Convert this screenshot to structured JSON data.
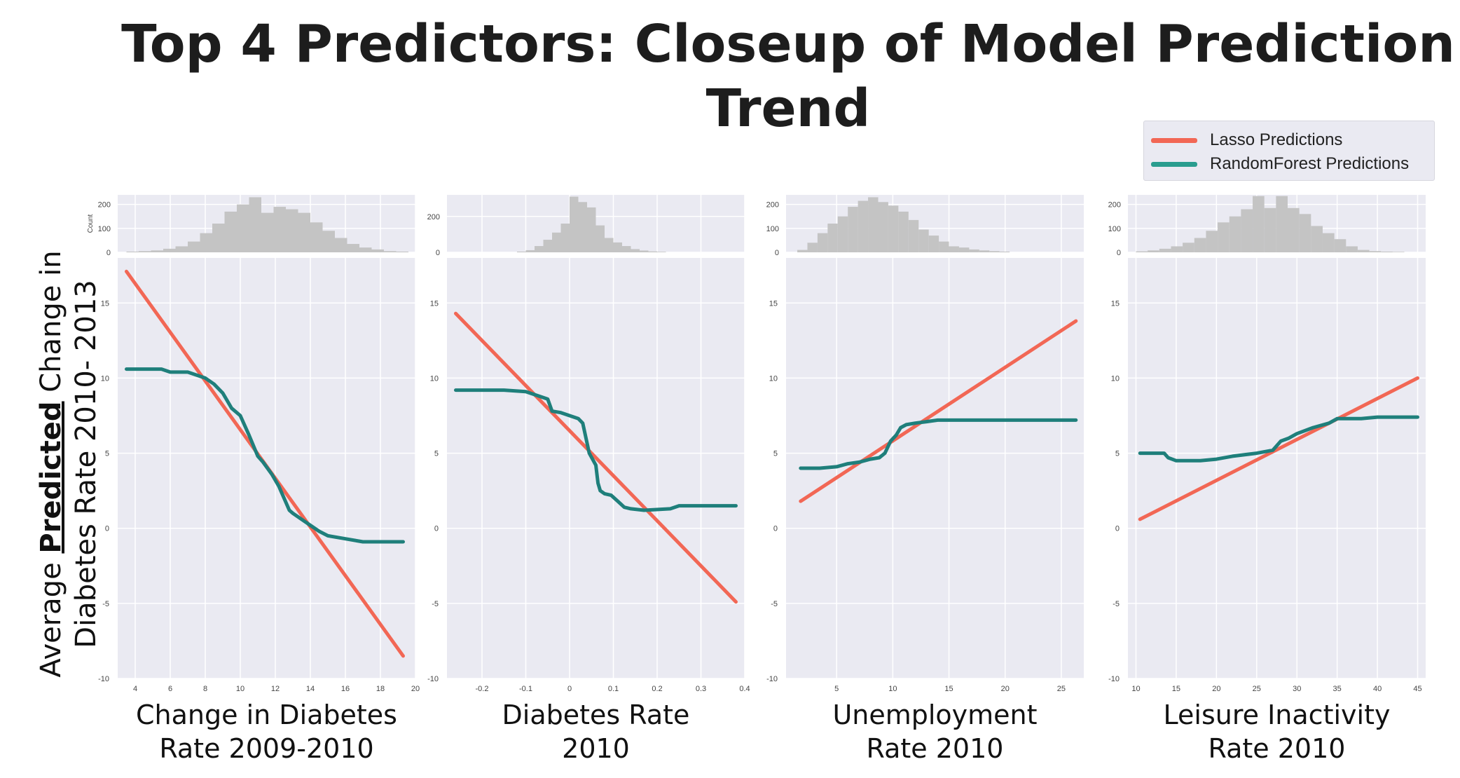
{
  "title_line1": "Top 4 Predictors: Closeup of Model Prediction",
  "title_line2": "Trend",
  "y_label_prefix": "Average ",
  "y_label_bold": "Predicted",
  "y_label_suffix": " Change in",
  "y_label_line2": "Diabetes Rate 2010- 2013",
  "legend": [
    {
      "label": "Lasso Predictions",
      "color": "#f26755"
    },
    {
      "label": "RandomForest Predictions",
      "color": "#2a9d8f"
    }
  ],
  "colors": {
    "lasso": "#f26755",
    "rf": "#1f7f7b",
    "hist": "#c4c4c4",
    "panel_bg": "#eaeaf2",
    "grid": "#ffffff"
  },
  "chart_data": [
    {
      "type": "line",
      "xlabel_line1": "Change in Diabetes",
      "xlabel_line2": "Rate 2009-2010",
      "xlim": [
        3,
        20
      ],
      "ylim": [
        -10,
        18
      ],
      "x_ticks": [
        4,
        6,
        8,
        10,
        12,
        14,
        16,
        18,
        20
      ],
      "y_ticks": [
        -10,
        -5,
        0,
        5,
        10,
        15
      ],
      "hist_ylabel": "Count",
      "hist_ylim": [
        0,
        240
      ],
      "hist_ticks": [
        0,
        100,
        200
      ],
      "hist": {
        "start": 3.5,
        "width": 0.7,
        "counts": [
          3,
          5,
          8,
          15,
          25,
          45,
          80,
          120,
          170,
          200,
          230,
          165,
          190,
          180,
          165,
          125,
          90,
          60,
          35,
          20,
          12,
          5,
          3
        ]
      },
      "series": [
        {
          "name": "Lasso Predictions",
          "x": [
            3.5,
            19.3
          ],
          "y": [
            17.1,
            -8.5
          ]
        },
        {
          "name": "RandomForest Predictions",
          "x": [
            3.5,
            5.5,
            6.0,
            7.0,
            7.5,
            8.0,
            8.5,
            9.0,
            9.5,
            10.0,
            10.5,
            11.0,
            11.3,
            11.8,
            12.2,
            12.8,
            13.0,
            13.5,
            14.5,
            15.0,
            16.0,
            17.0,
            19.3
          ],
          "y": [
            10.6,
            10.6,
            10.4,
            10.4,
            10.2,
            10.0,
            9.6,
            9.0,
            8.0,
            7.5,
            6.2,
            4.8,
            4.4,
            3.6,
            2.8,
            1.2,
            1.0,
            0.6,
            -0.2,
            -0.5,
            -0.7,
            -0.9,
            -0.9
          ]
        }
      ]
    },
    {
      "type": "line",
      "xlabel_line1": "Diabetes Rate",
      "xlabel_line2": "2010",
      "xlim": [
        -0.28,
        0.4
      ],
      "ylim": [
        -10,
        18
      ],
      "x_ticks": [
        -0.2,
        -0.1,
        0.0,
        0.1,
        0.2,
        0.3,
        0.4
      ],
      "y_ticks": [
        -10,
        -5,
        0,
        5,
        10,
        15
      ],
      "hist_ylabel": "",
      "hist_ylim": [
        0,
        320
      ],
      "hist_ticks": [
        0,
        200
      ],
      "hist": {
        "start": -0.12,
        "width": 0.02,
        "counts": [
          4,
          12,
          35,
          70,
          110,
          160,
          310,
          280,
          250,
          150,
          80,
          55,
          35,
          18,
          10,
          5,
          3
        ]
      },
      "series": [
        {
          "name": "Lasso Predictions",
          "x": [
            -0.26,
            0.38
          ],
          "y": [
            14.3,
            -4.9
          ]
        },
        {
          "name": "RandomForest Predictions",
          "x": [
            -0.26,
            -0.15,
            -0.1,
            -0.07,
            -0.05,
            -0.04,
            -0.02,
            0.0,
            0.02,
            0.03,
            0.045,
            0.06,
            0.065,
            0.07,
            0.08,
            0.095,
            0.11,
            0.125,
            0.14,
            0.17,
            0.23,
            0.25,
            0.38
          ],
          "y": [
            9.2,
            9.2,
            9.1,
            8.8,
            8.6,
            7.8,
            7.7,
            7.5,
            7.3,
            7.0,
            5.0,
            4.2,
            3.0,
            2.5,
            2.3,
            2.2,
            1.8,
            1.4,
            1.3,
            1.2,
            1.3,
            1.5,
            1.5
          ]
        }
      ]
    },
    {
      "type": "line",
      "xlabel_line1": "Unemployment",
      "xlabel_line2": "Rate 2010",
      "xlim": [
        0.5,
        27
      ],
      "ylim": [
        -10,
        18
      ],
      "x_ticks": [
        5,
        10,
        15,
        20,
        25
      ],
      "y_ticks": [
        -10,
        -5,
        0,
        5,
        10,
        15
      ],
      "hist_ylabel": "",
      "hist_ylim": [
        0,
        240
      ],
      "hist_ticks": [
        0,
        100,
        200
      ],
      "hist": {
        "start": 1.5,
        "width": 0.9,
        "counts": [
          10,
          40,
          80,
          120,
          150,
          190,
          215,
          230,
          210,
          195,
          170,
          135,
          95,
          70,
          45,
          25,
          20,
          12,
          8,
          5,
          3
        ]
      },
      "series": [
        {
          "name": "Lasso Predictions",
          "x": [
            1.8,
            26.3
          ],
          "y": [
            1.8,
            13.8
          ]
        },
        {
          "name": "RandomForest Predictions",
          "x": [
            1.8,
            3.5,
            5.0,
            6.0,
            7.0,
            8.0,
            8.8,
            9.3,
            9.8,
            10.3,
            10.7,
            11.2,
            12.0,
            13.0,
            14.0,
            26.3
          ],
          "y": [
            4.0,
            4.0,
            4.1,
            4.3,
            4.4,
            4.6,
            4.7,
            5.0,
            5.8,
            6.2,
            6.7,
            6.9,
            7.0,
            7.1,
            7.2,
            7.2
          ]
        }
      ]
    },
    {
      "type": "line",
      "xlabel_line1": "Leisure Inactivity",
      "xlabel_line2": "Rate 2010",
      "xlim": [
        9,
        46
      ],
      "ylim": [
        -10,
        18
      ],
      "x_ticks": [
        10,
        15,
        20,
        25,
        30,
        35,
        40,
        45
      ],
      "y_ticks": [
        -10,
        -5,
        0,
        5,
        10,
        15
      ],
      "hist_ylabel": "",
      "hist_ylim": [
        0,
        240
      ],
      "hist_ticks": [
        0,
        100,
        200
      ],
      "hist": {
        "start": 10.0,
        "width": 1.45,
        "counts": [
          4,
          8,
          15,
          25,
          40,
          60,
          90,
          125,
          150,
          180,
          235,
          185,
          235,
          185,
          160,
          110,
          80,
          55,
          25,
          10,
          5,
          3,
          2
        ]
      },
      "series": [
        {
          "name": "Lasso Predictions",
          "x": [
            10.5,
            45
          ],
          "y": [
            0.6,
            10.0
          ]
        },
        {
          "name": "RandomForest Predictions",
          "x": [
            10.5,
            13.5,
            14.0,
            15.0,
            18.0,
            20.0,
            22.0,
            25.0,
            27.0,
            28.0,
            29.0,
            30.0,
            32.0,
            34.0,
            35.0,
            38.0,
            40.0,
            45.0
          ],
          "y": [
            5.0,
            5.0,
            4.7,
            4.5,
            4.5,
            4.6,
            4.8,
            5.0,
            5.2,
            5.8,
            6.0,
            6.3,
            6.7,
            7.0,
            7.3,
            7.3,
            7.4,
            7.4
          ]
        }
      ]
    }
  ]
}
